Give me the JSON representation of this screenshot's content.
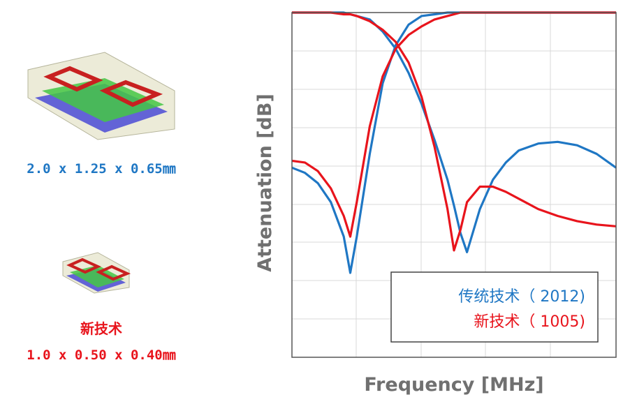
{
  "chart_data": {
    "type": "line",
    "xlabel": "Frequency [MHz]",
    "ylabel": "Attenuation [dB]",
    "annotations": [
      "2.0 x 1.25 x 0.65㎜",
      "新技术",
      "1.0 x 0.50 x 0.40㎜"
    ],
    "x": [
      0,
      4,
      8,
      12,
      16,
      18,
      20,
      24,
      28,
      32,
      36,
      40,
      44,
      48,
      50,
      52,
      54,
      58,
      62,
      66,
      70,
      76,
      82,
      88,
      94,
      100
    ],
    "xlim": [
      0,
      100
    ],
    "ylim": [
      -100,
      0
    ],
    "grid": true,
    "legend": "lower right",
    "series": [
      {
        "name": "传统技术（ 2012)",
        "color": "#1f77c4",
        "values": [
          -45,
          -46.5,
          -49.5,
          -55,
          -65,
          -75.5,
          -65,
          -41,
          -20.5,
          -9.5,
          -3.5,
          -1,
          -0.5,
          0,
          0,
          0,
          0,
          0,
          0,
          0,
          0,
          0,
          0,
          0,
          0,
          0
        ]
      },
      {
        "color": "#1f77c4",
        "values": [
          0,
          0,
          0,
          0,
          0,
          -0.5,
          -1,
          -2,
          -5.5,
          -10.5,
          -17.5,
          -26.5,
          -37,
          -48.5,
          -56,
          -64,
          -69.5,
          -57,
          -48.5,
          -43.5,
          -40,
          -38,
          -37.5,
          -38.5,
          -41,
          -45
        ]
      },
      {
        "name": "新技术（ 1005)",
        "color": "#e8141c",
        "values": [
          -43,
          -43.5,
          -46,
          -51,
          -59,
          -65,
          -55,
          -33,
          -18.5,
          -10.5,
          -6.5,
          -4,
          -2,
          -1,
          -0.5,
          0,
          0,
          0,
          0,
          0,
          0,
          0,
          0,
          0,
          0,
          0
        ]
      },
      {
        "color": "#e8141c",
        "values": [
          0,
          0,
          0,
          0,
          -0.5,
          -0.5,
          -1,
          -2.5,
          -5,
          -8.5,
          -14.5,
          -24.5,
          -39,
          -57,
          -69,
          -63,
          -55,
          -50.5,
          -50.5,
          -52,
          -54,
          -57,
          -59,
          -60.5,
          -61.5,
          -62
        ]
      }
    ]
  }
}
